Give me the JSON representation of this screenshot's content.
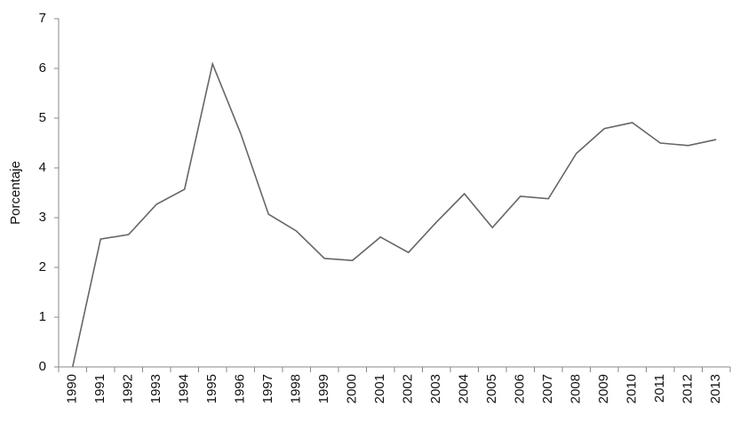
{
  "chart_data": {
    "type": "line",
    "y_label": "Porcentaje",
    "categories": [
      "1990",
      "1991",
      "1992",
      "1993",
      "1994",
      "1995",
      "1996",
      "1997",
      "1998",
      "1999",
      "2000",
      "2001",
      "2002",
      "2003",
      "2004",
      "2005",
      "2006",
      "2007",
      "2008",
      "2009",
      "2010",
      "2011",
      "2012",
      "2013"
    ],
    "values": [
      0,
      2.57,
      2.66,
      3.27,
      3.57,
      6.09,
      4.7,
      3.07,
      2.73,
      2.18,
      2.14,
      2.61,
      2.3,
      2.91,
      3.48,
      2.8,
      3.43,
      3.38,
      4.29,
      4.79,
      4.91,
      4.5,
      4.45,
      4.57
    ],
    "color": "#666666",
    "ylim": [
      0,
      7
    ],
    "yticks": [
      0,
      1,
      2,
      3,
      4,
      5,
      6,
      7
    ],
    "grid": false
  }
}
